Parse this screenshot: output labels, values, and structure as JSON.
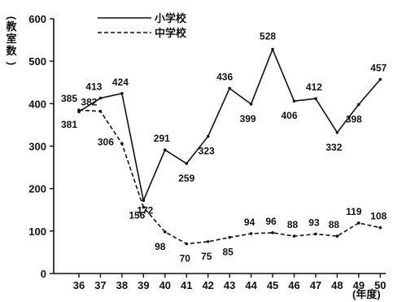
{
  "chart_data": {
    "type": "line",
    "title": "",
    "xlabel": "(年度)",
    "ylabel": "(教室数)",
    "x": [
      "36",
      "37",
      "38",
      "39",
      "40",
      "41",
      "42",
      "43",
      "44",
      "45",
      "46",
      "47",
      "48",
      "49",
      "50"
    ],
    "ylim": [
      0,
      600
    ],
    "yticks": [
      0,
      100,
      200,
      300,
      400,
      500,
      600
    ],
    "legend_position": "top-left",
    "grid": false,
    "series": [
      {
        "name": "小学校",
        "style": "solid",
        "values": [
          381,
          413,
          424,
          172,
          291,
          259,
          323,
          436,
          399,
          528,
          406,
          412,
          332,
          398,
          457
        ],
        "labels": [
          "381",
          "413",
          "424",
          "172",
          "291",
          "259",
          "323",
          "436",
          "399",
          "528",
          "406",
          "412",
          "332",
          "398",
          "457"
        ]
      },
      {
        "name": "中学校",
        "style": "dashed",
        "values": [
          385,
          382,
          306,
          156,
          98,
          70,
          75,
          85,
          94,
          96,
          88,
          93,
          88,
          119,
          108
        ],
        "labels": [
          "385",
          "382",
          "306",
          "156",
          "98",
          "70",
          "75",
          "85",
          "94",
          "96",
          "88",
          "93",
          "88",
          "119",
          "108"
        ]
      }
    ],
    "colors": {
      "ink": "#111111",
      "background": "#ffffff"
    }
  }
}
